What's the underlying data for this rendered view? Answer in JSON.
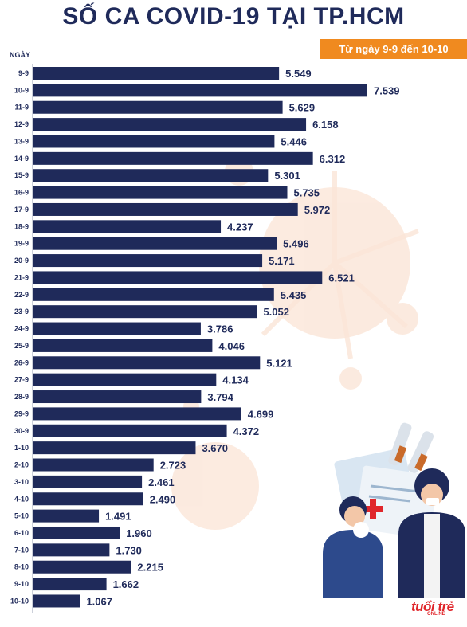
{
  "title": "SỐ CA COVID-19 TẠI TP.HCM",
  "subtitle": "Từ ngày 9-9 đến 10-10",
  "logo": {
    "text": "tuổi trẻ",
    "sub": "ONLINE"
  },
  "colors": {
    "bar": "#1f2a5a",
    "accent": "#f08a1f",
    "text": "#1f2a5a",
    "virus": "#fbe6d8",
    "logo": "#e0262b"
  },
  "chart_data": {
    "type": "bar",
    "orientation": "horizontal",
    "xlabel": "",
    "ylabel": "NGÀY",
    "categories": [
      "9-9",
      "10-9",
      "11-9",
      "12-9",
      "13-9",
      "14-9",
      "15-9",
      "16-9",
      "17-9",
      "18-9",
      "19-9",
      "20-9",
      "21-9",
      "22-9",
      "23-9",
      "24-9",
      "25-9",
      "26-9",
      "27-9",
      "28-9",
      "29-9",
      "30-9",
      "1-10",
      "2-10",
      "3-10",
      "4-10",
      "5-10",
      "6-10",
      "7-10",
      "8-10",
      "9-10",
      "10-10"
    ],
    "values": [
      5549,
      7539,
      5629,
      6158,
      5446,
      6312,
      5301,
      5735,
      5972,
      4237,
      5496,
      5171,
      6521,
      5435,
      5052,
      3786,
      4046,
      5121,
      4134,
      3794,
      4699,
      4372,
      3670,
      2723,
      2461,
      2490,
      1491,
      1960,
      1730,
      2215,
      1662,
      1067
    ],
    "value_labels": [
      "5.549",
      "7.539",
      "5.629",
      "6.158",
      "5.446",
      "6.312",
      "5.301",
      "5.735",
      "5.972",
      "4.237",
      "5.496",
      "5.171",
      "6.521",
      "5.435",
      "5.052",
      "3.786",
      "4.046",
      "5.121",
      "4.134",
      "3.794",
      "4.699",
      "4.372",
      "3.670",
      "2.723",
      "2.461",
      "2.490",
      "1.491",
      "1.960",
      "1.730",
      "2.215",
      "1.662",
      "1.067"
    ],
    "grid": false,
    "legend": "none"
  }
}
